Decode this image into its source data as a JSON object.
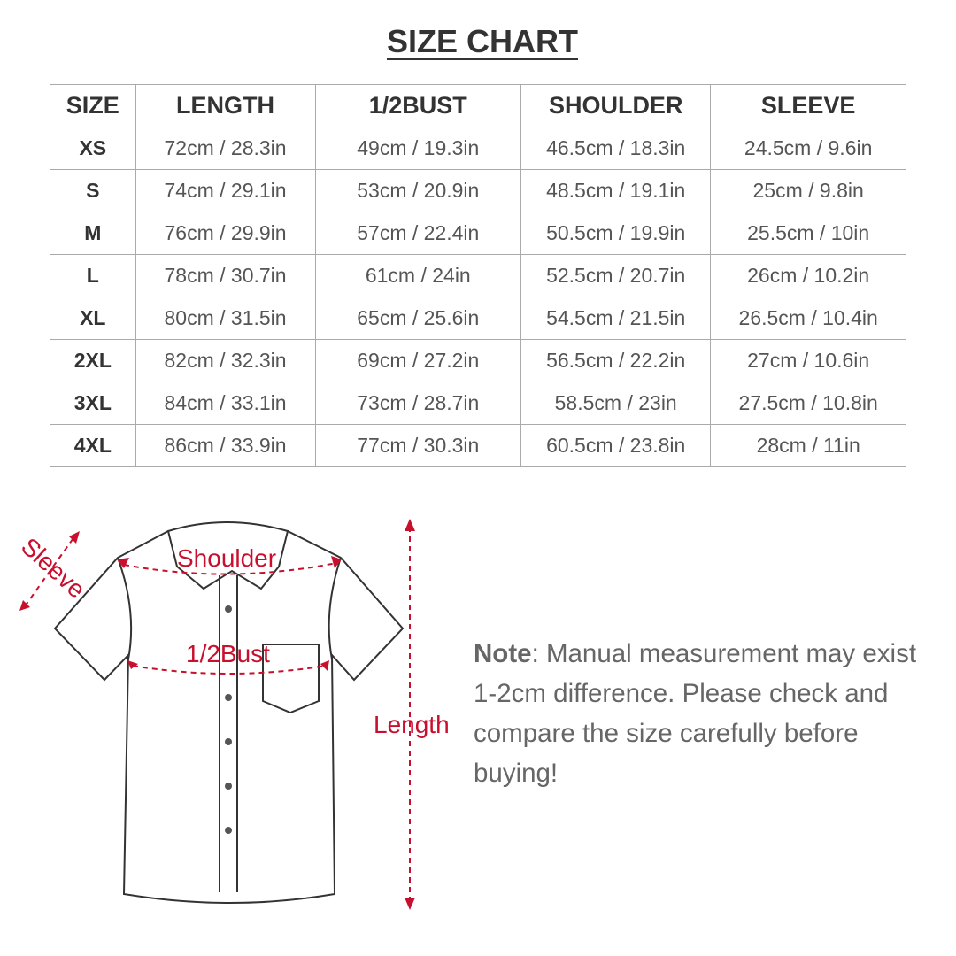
{
  "title": "SIZE CHART",
  "table": {
    "headers": [
      "SIZE",
      "LENGTH",
      "1/2BUST",
      "SHOULDER",
      "SLEEVE"
    ],
    "rows": [
      [
        "XS",
        "72cm / 28.3in",
        "49cm / 19.3in",
        "46.5cm / 18.3in",
        "24.5cm / 9.6in"
      ],
      [
        "S",
        "74cm / 29.1in",
        "53cm / 20.9in",
        "48.5cm / 19.1in",
        "25cm / 9.8in"
      ],
      [
        "M",
        "76cm / 29.9in",
        "57cm / 22.4in",
        "50.5cm / 19.9in",
        "25.5cm / 10in"
      ],
      [
        "L",
        "78cm / 30.7in",
        "61cm / 24in",
        "52.5cm / 20.7in",
        "26cm / 10.2in"
      ],
      [
        "XL",
        "80cm / 31.5in",
        "65cm / 25.6in",
        "54.5cm / 21.5in",
        "26.5cm / 10.4in"
      ],
      [
        "2XL",
        "82cm / 32.3in",
        "69cm / 27.2in",
        "56.5cm / 22.2in",
        "27cm / 10.6in"
      ],
      [
        "3XL",
        "84cm / 33.1in",
        "73cm / 28.7in",
        "58.5cm / 23in",
        "27.5cm / 10.8in"
      ],
      [
        "4XL",
        "86cm / 33.9in",
        "77cm / 30.3in",
        "60.5cm / 23.8in",
        "28cm / 11in"
      ]
    ]
  },
  "diagram": {
    "sleeve": "Sleeve",
    "shoulder": "Shoulder",
    "bust": "1/2Bust",
    "length": "Length",
    "accent": "#c8102e"
  },
  "note": {
    "label": "Note",
    "text": ": Manual measurement may exist 1-2cm difference. Please check and compare the size carefully before buying!"
  }
}
